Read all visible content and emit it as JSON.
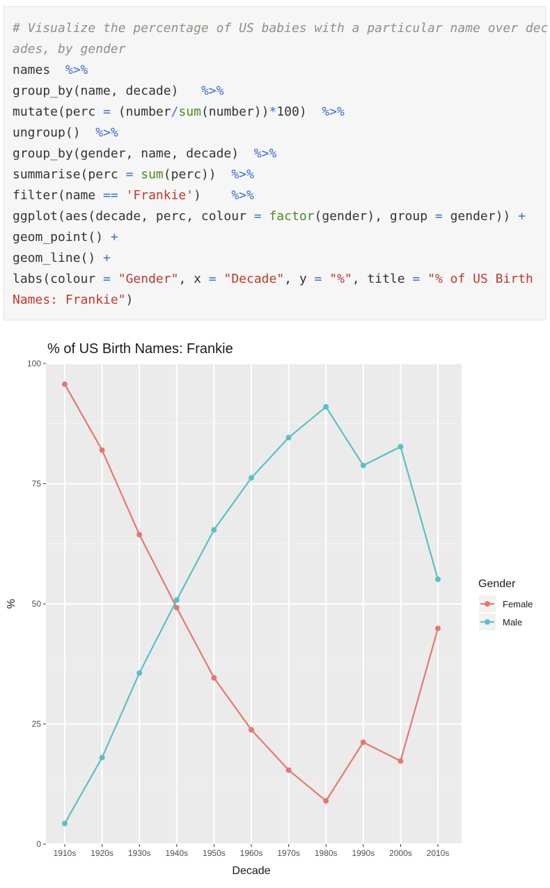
{
  "code": {
    "lines": [
      [
        {
          "t": "# Visualize the percentage of US babies with a particular name over dec",
          "c": "comment"
        }
      ],
      [
        {
          "t": "ades, by gender",
          "c": "comment"
        }
      ],
      [
        {
          "t": "names  ",
          "c": "plain"
        },
        {
          "t": "%>%",
          "c": "op"
        }
      ],
      [
        {
          "t": "group_by(name, decade)   ",
          "c": "plain"
        },
        {
          "t": "%>%",
          "c": "op"
        }
      ],
      [
        {
          "t": "mutate(perc ",
          "c": "plain"
        },
        {
          "t": "=",
          "c": "op"
        },
        {
          "t": " (number",
          "c": "plain"
        },
        {
          "t": "/",
          "c": "op"
        },
        {
          "t": "sum",
          "c": "fn"
        },
        {
          "t": "(number))",
          "c": "plain"
        },
        {
          "t": "*",
          "c": "op"
        },
        {
          "t": "100)  ",
          "c": "plain"
        },
        {
          "t": "%>%",
          "c": "op"
        }
      ],
      [
        {
          "t": "ungroup()  ",
          "c": "plain"
        },
        {
          "t": "%>%",
          "c": "op"
        }
      ],
      [
        {
          "t": "group_by(gender, name, decade)  ",
          "c": "plain"
        },
        {
          "t": "%>%",
          "c": "op"
        }
      ],
      [
        {
          "t": "summarise(perc ",
          "c": "plain"
        },
        {
          "t": "=",
          "c": "op"
        },
        {
          "t": " ",
          "c": "plain"
        },
        {
          "t": "sum",
          "c": "fn"
        },
        {
          "t": "(perc))  ",
          "c": "plain"
        },
        {
          "t": "%>%",
          "c": "op"
        }
      ],
      [
        {
          "t": "filter(name ",
          "c": "plain"
        },
        {
          "t": "==",
          "c": "op"
        },
        {
          "t": " ",
          "c": "plain"
        },
        {
          "t": "'Frankie'",
          "c": "str"
        },
        {
          "t": ")    ",
          "c": "plain"
        },
        {
          "t": "%>%",
          "c": "op"
        }
      ],
      [
        {
          "t": "ggplot(aes(decade, perc, colour ",
          "c": "plain"
        },
        {
          "t": "=",
          "c": "op"
        },
        {
          "t": " ",
          "c": "plain"
        },
        {
          "t": "factor",
          "c": "fn"
        },
        {
          "t": "(gender), group ",
          "c": "plain"
        },
        {
          "t": "=",
          "c": "op"
        },
        {
          "t": " gender)) ",
          "c": "plain"
        },
        {
          "t": "+",
          "c": "op"
        }
      ],
      [
        {
          "t": "geom_point() ",
          "c": "plain"
        },
        {
          "t": "+",
          "c": "op"
        }
      ],
      [
        {
          "t": "geom_line() ",
          "c": "plain"
        },
        {
          "t": "+",
          "c": "op"
        }
      ],
      [
        {
          "t": "labs(colour ",
          "c": "plain"
        },
        {
          "t": "=",
          "c": "op"
        },
        {
          "t": " ",
          "c": "plain"
        },
        {
          "t": "\"Gender\"",
          "c": "str"
        },
        {
          "t": ", x ",
          "c": "plain"
        },
        {
          "t": "=",
          "c": "op"
        },
        {
          "t": " ",
          "c": "plain"
        },
        {
          "t": "\"Decade\"",
          "c": "str"
        },
        {
          "t": ", y ",
          "c": "plain"
        },
        {
          "t": "=",
          "c": "op"
        },
        {
          "t": " ",
          "c": "plain"
        },
        {
          "t": "\"%\"",
          "c": "str"
        },
        {
          "t": ", title ",
          "c": "plain"
        },
        {
          "t": "=",
          "c": "op"
        },
        {
          "t": " ",
          "c": "plain"
        },
        {
          "t": "\"% of US Birth",
          "c": "str"
        }
      ],
      [
        {
          "t": "Names: Frankie\"",
          "c": "str"
        },
        {
          "t": ")",
          "c": "plain"
        }
      ]
    ]
  },
  "chart_data": {
    "type": "line",
    "title": "% of US Birth Names: Frankie",
    "xlabel": "Decade",
    "ylabel": "%",
    "categories": [
      "1910s",
      "1920s",
      "1930s",
      "1940s",
      "1950s",
      "1960s",
      "1970s",
      "1980s",
      "1990s",
      "2000s",
      "2010s"
    ],
    "series": [
      {
        "name": "Female",
        "color": "#e8776f",
        "values": [
          95.7,
          82.0,
          64.4,
          49.2,
          34.6,
          23.8,
          15.4,
          9.0,
          21.2,
          17.3,
          44.9
        ]
      },
      {
        "name": "Male",
        "color": "#5bbfc6",
        "values": [
          4.3,
          18.0,
          35.6,
          50.8,
          65.4,
          76.2,
          84.6,
          91.0,
          78.8,
          82.7,
          55.1
        ]
      }
    ],
    "ylim": [
      0,
      100
    ],
    "yticks": [
      0,
      25,
      50,
      75,
      100
    ],
    "grid": true,
    "legend": {
      "title": "Gender",
      "position": "right"
    }
  }
}
